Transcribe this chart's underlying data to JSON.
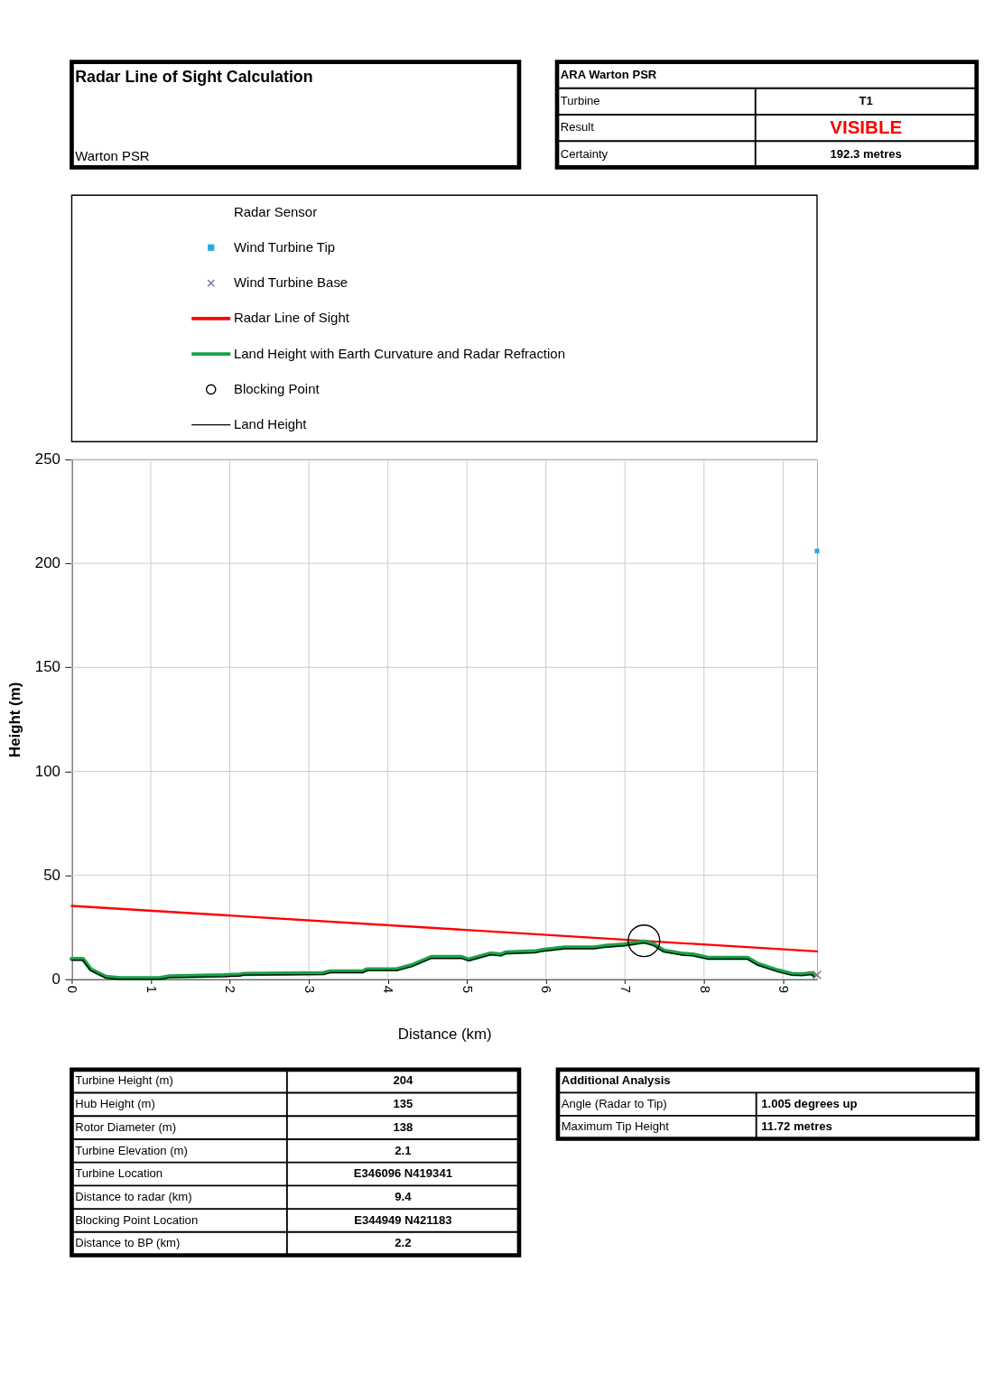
{
  "chart_data": {
    "type": "line",
    "title": "Radar Line of Sight Calculation",
    "subtitle": "Warton PSR",
    "xlabel": "Distance (km)",
    "ylabel": "Height (m)",
    "xlim": [
      0,
      9.43
    ],
    "ylim": [
      0,
      250
    ],
    "xticks": [
      0,
      1,
      2,
      3,
      4,
      5,
      6,
      7,
      8,
      9
    ],
    "yticks": [
      0,
      50,
      100,
      150,
      200,
      250
    ],
    "grid": true,
    "legend": "top",
    "series": [
      {
        "name": "Wind Turbine Tip",
        "type": "scatter",
        "marker": "square",
        "color": "#29a8e0",
        "x": [
          9.43
        ],
        "values": [
          206
        ]
      },
      {
        "name": "Wind Turbine Base",
        "type": "scatter",
        "marker": "cross",
        "color": "#7a6e9e",
        "x": [
          9.43
        ],
        "values": [
          2.1
        ]
      },
      {
        "name": "Radar Line of Sight",
        "type": "line",
        "color": "#ff0000",
        "x": [
          0,
          9.43
        ],
        "values": [
          35.3,
          13.4
        ]
      },
      {
        "name": "Land Height with Earth Curvature and Radar Refraction",
        "type": "line",
        "color": "#1aa24a",
        "x": [
          0,
          0.14,
          0.24,
          0.43,
          0.61,
          1.11,
          1.24,
          1.93,
          2.02,
          2.11,
          2.18,
          3.18,
          3.27,
          3.68,
          3.74,
          4.11,
          4.3,
          4.55,
          4.93,
          5.02,
          5.3,
          5.43,
          5.49,
          5.86,
          5.96,
          6.24,
          6.61,
          6.74,
          6.99,
          7.24,
          7.36,
          7.49,
          7.74,
          7.86,
          8.05,
          8.55,
          8.68,
          8.93,
          9.11,
          9.24,
          9.36,
          9.39
        ],
        "values": [
          9.8,
          9.8,
          4.8,
          1.2,
          0.5,
          0.5,
          1.4,
          1.9,
          2.1,
          2.1,
          2.6,
          2.9,
          3.8,
          3.8,
          4.8,
          4.8,
          6.7,
          10.7,
          10.7,
          9.5,
          12.4,
          11.9,
          12.9,
          13.4,
          14.1,
          15.3,
          15.3,
          16.0,
          16.7,
          18.1,
          16.9,
          13.8,
          12.2,
          11.9,
          10.3,
          10.3,
          7.4,
          4.3,
          2.6,
          2.4,
          2.9,
          1.9
        ]
      },
      {
        "name": "Blocking Point",
        "type": "scatter",
        "marker": "circle",
        "color": "#000000",
        "x": [
          7.24
        ],
        "values": [
          18.5
        ]
      },
      {
        "name": "Land Height",
        "type": "line",
        "color": "#000000",
        "x": [
          0,
          0.14,
          0.24,
          0.43,
          0.61,
          1.11,
          1.24,
          1.93,
          2.02,
          2.11,
          2.18,
          3.18,
          3.27,
          3.68,
          3.74,
          4.11,
          4.3,
          4.55,
          4.93,
          5.02,
          5.3,
          5.43,
          5.49,
          5.86,
          5.96,
          6.24,
          6.61,
          6.74,
          6.99,
          7.24,
          7.36,
          7.49,
          7.74,
          7.86,
          8.05,
          8.55,
          8.68,
          8.93,
          9.11,
          9.24,
          9.36,
          9.39
        ],
        "values": [
          9.2,
          9.2,
          4.2,
          0.6,
          0,
          0,
          0.8,
          1.3,
          1.5,
          1.5,
          2.0,
          2.3,
          3.2,
          3.2,
          4.2,
          4.2,
          6.1,
          10.1,
          10.1,
          8.9,
          11.8,
          11.3,
          12.3,
          12.8,
          13.5,
          14.7,
          14.7,
          15.4,
          16.1,
          17.5,
          16.3,
          13.2,
          11.6,
          11.3,
          9.7,
          9.7,
          6.8,
          3.7,
          2.0,
          1.8,
          2.3,
          1.3
        ]
      }
    ],
    "annotations": [
      "ARA Warton PSR",
      "Turbine",
      "T1",
      "Result",
      "VISIBLE",
      "Certainty",
      "192.3    metres",
      "Turbine Height (m)",
      "204",
      "Hub Height (m)",
      "135",
      "Rotor Diameter (m)",
      "138",
      "Turbine Elevation (m)",
      "2.1",
      "Turbine Location",
      "E346096 N419341",
      "Distance to radar (km)",
      "9.4",
      "Blocking Point Location",
      "E344949 N421183",
      "Distance to BP (km)",
      "2.2",
      "Additional Analysis",
      "Angle (Radar to Tip)",
      "1.005 degrees up",
      "Maximum Tip Height",
      "11.72 metres",
      "Radar Sensor"
    ]
  }
}
